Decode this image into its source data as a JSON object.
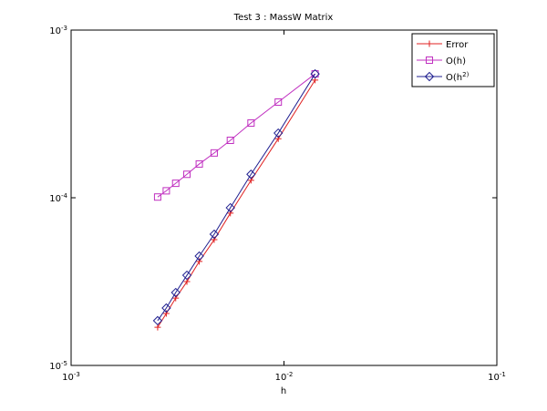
{
  "chart_data": {
    "type": "line",
    "title": "Test 3 : MassW Matrix",
    "xlabel": "h",
    "xscale": "log",
    "yscale": "log",
    "x": [
      0.00255,
      0.0028,
      0.0031,
      0.0035,
      0.004,
      0.0047,
      0.0056,
      0.007,
      0.0094,
      0.014
    ],
    "series": [
      {
        "name": "Error",
        "color": "#e02020",
        "marker": "plus",
        "values": [
          1.69e-05,
          2.04e-05,
          2.52e-05,
          3.16e-05,
          4.17e-05,
          5.62e-05,
          8.09e-05,
          0.000127,
          0.000225,
          0.000503
        ]
      },
      {
        "name": "O(h)",
        "color": "#c030c0",
        "marker": "square",
        "values": [
          0.000101,
          0.00011,
          0.000122,
          0.000138,
          0.000159,
          0.000185,
          0.00022,
          0.000279,
          0.000372,
          0.000548
        ]
      },
      {
        "name": "O(h^2)",
        "color": "#202090",
        "marker": "diamond",
        "values": [
          1.85e-05,
          2.2e-05,
          2.72e-05,
          3.45e-05,
          4.49e-05,
          6.06e-05,
          8.72e-05,
          0.000138,
          0.000243,
          0.000548
        ]
      }
    ],
    "xlim": [
      0.001,
      0.1
    ],
    "xticks": [
      {
        "value": 0.001,
        "label": "10^-3"
      },
      {
        "value": 0.01,
        "label": "10^-2"
      },
      {
        "value": 0.1,
        "label": "10^-1"
      }
    ],
    "ylim": [
      1e-05,
      0.001
    ],
    "yticks": [
      {
        "value": 1e-05,
        "label": "10^-5"
      },
      {
        "value": 0.0001,
        "label": "10^-4"
      },
      {
        "value": 0.001,
        "label": "10^-3"
      }
    ],
    "legend": "northeast"
  }
}
